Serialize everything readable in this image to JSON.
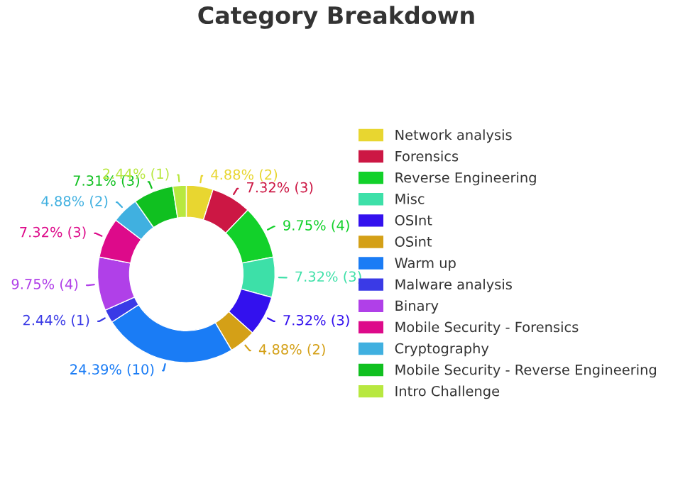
{
  "chart_data": {
    "type": "donut",
    "title": "Category Breakdown",
    "categories": [
      "Network analysis",
      "Forensics",
      "Reverse Engineering",
      "Misc",
      "OSInt",
      "OSint",
      "Warm up",
      "Malware analysis",
      "Binary",
      "Mobile Security - Forensics",
      "Cryptography",
      "Mobile Security - Reverse Engineering",
      "Intro Challenge"
    ],
    "values": [
      4.88,
      7.32,
      9.75,
      7.32,
      7.32,
      4.88,
      24.39,
      2.44,
      9.75,
      7.32,
      4.88,
      7.31,
      2.44
    ],
    "value_labels": [
      "4.88% (2)",
      "7.32% (3)",
      "9.75% (4)",
      "7.32% (3)",
      "7.32% (3)",
      "4.88% (2)",
      "24.39% (10)",
      "2.44% (1)",
      "9.75% (4)",
      "7.32% (3)",
      "4.88% (2)",
      "7.31% (3)",
      "2.44% (1)"
    ],
    "colors": [
      "#e8d630",
      "#cc1744",
      "#12d12a",
      "#3de0a8",
      "#3311ee",
      "#d4a017",
      "#1a7cf5",
      "#3a3ae6",
      "#b040e8",
      "#dd0a8a",
      "#40b0e0",
      "#10c020",
      "#b8e840"
    ],
    "legend": "right"
  }
}
